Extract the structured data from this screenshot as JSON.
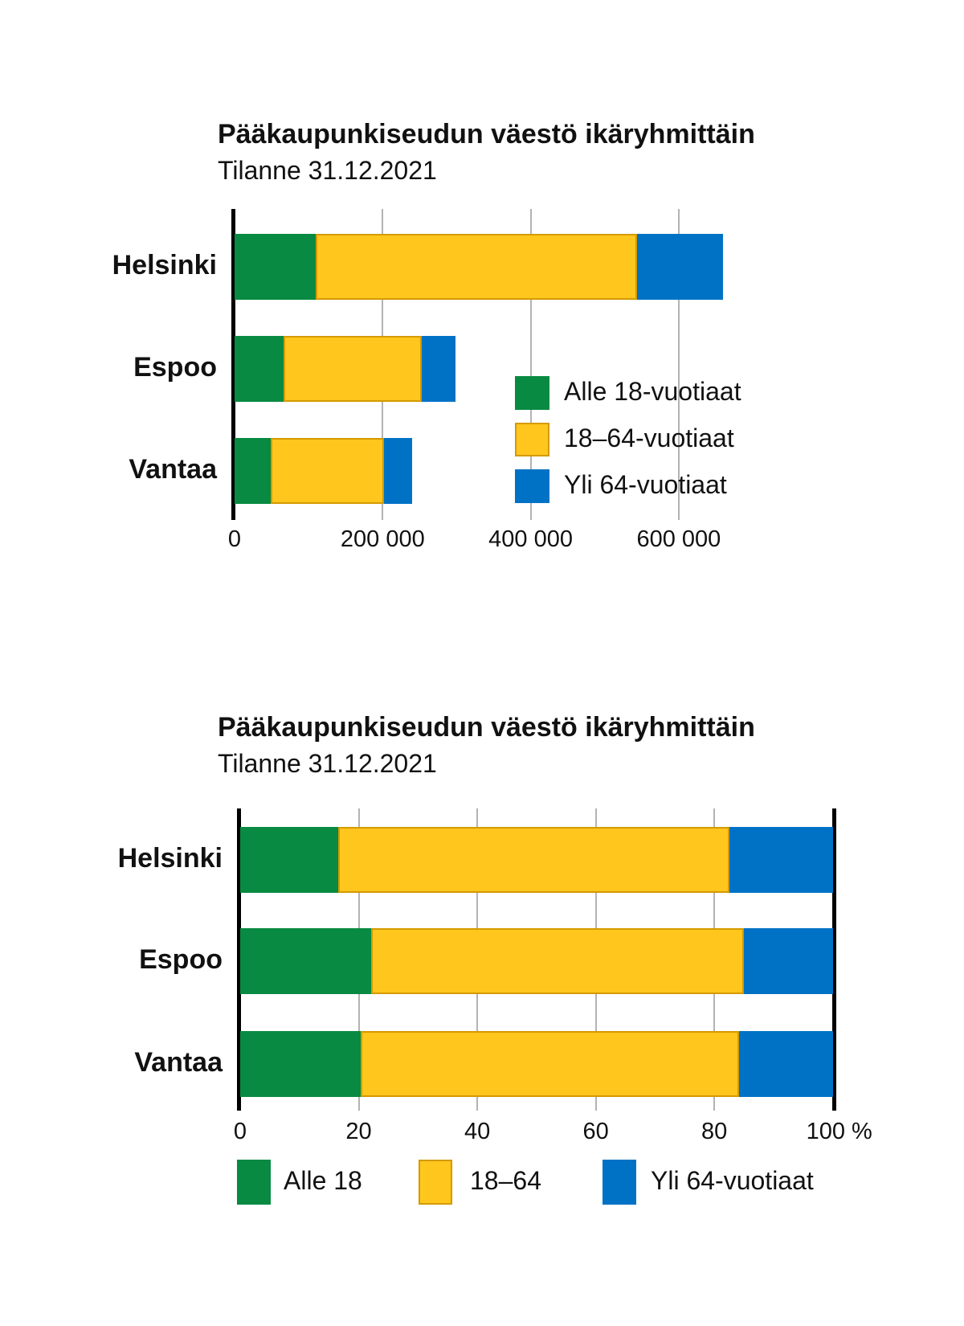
{
  "colors": {
    "green": "#088A42",
    "yellow": "#FFC61E",
    "yellow_border": "#D49A00",
    "blue": "#0072C5",
    "axis": "#000000",
    "gridline": "#B3B3B3",
    "text": "#111111",
    "background": "#FFFFFF"
  },
  "chart_data": [
    {
      "type": "bar",
      "variant": "horizontal-stacked",
      "title": "Pääkaupunkiseudun väestö ikäryhmittäin",
      "subtitle": "Tilanne 31.12.2021",
      "categories": [
        "Helsinki",
        "Espoo",
        "Vantaa"
      ],
      "series": [
        {
          "name": "Alle 18-vuotiaat",
          "color_key": "green",
          "values": [
            110000,
            66000,
            49000
          ]
        },
        {
          "name": "18–64-vuotiaat",
          "color_key": "yellow",
          "values": [
            434000,
            187000,
            153000
          ]
        },
        {
          "name": "Yli 64-vuotiaat",
          "color_key": "blue",
          "values": [
            116000,
            45000,
            38000
          ]
        }
      ],
      "totals": [
        660000,
        298000,
        240000
      ],
      "xlim": [
        0,
        660000
      ],
      "x_ticks": [
        {
          "value": 0,
          "label": "0"
        },
        {
          "value": 200000,
          "label": "200 000"
        },
        {
          "value": 400000,
          "label": "400 000"
        },
        {
          "value": 600000,
          "label": "600 000"
        }
      ],
      "grid": true,
      "legend_position": "inside-right-column"
    },
    {
      "type": "bar",
      "variant": "horizontal-stacked-100pct",
      "title": "Pääkaupunkiseudun väestö ikäryhmittäin",
      "subtitle": "Tilanne 31.12.2021",
      "categories": [
        "Helsinki",
        "Espoo",
        "Vantaa"
      ],
      "series": [
        {
          "name": "Alle 18",
          "color_key": "green",
          "values": [
            16.6,
            22.1,
            20.4
          ]
        },
        {
          "name": "18–64",
          "color_key": "yellow",
          "values": [
            65.9,
            62.9,
            63.8
          ]
        },
        {
          "name": "Yli 64-vuotiaat",
          "color_key": "blue",
          "values": [
            17.5,
            15.0,
            15.8
          ]
        }
      ],
      "xlim": [
        0,
        100
      ],
      "x_ticks": [
        {
          "value": 0,
          "label": "0"
        },
        {
          "value": 20,
          "label": "20"
        },
        {
          "value": 40,
          "label": "40"
        },
        {
          "value": 60,
          "label": "60"
        },
        {
          "value": 80,
          "label": "80"
        },
        {
          "value": 100,
          "label": "100 %"
        }
      ],
      "grid": true,
      "legend_position": "bottom-row"
    }
  ]
}
